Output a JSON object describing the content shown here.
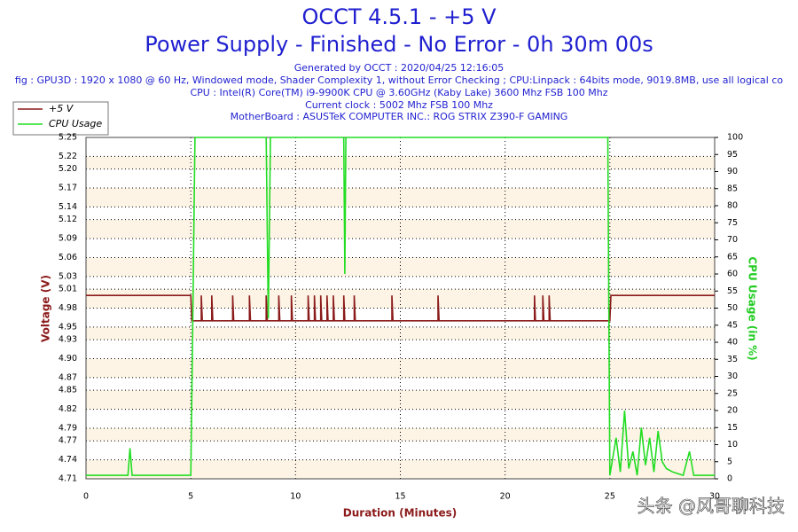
{
  "chart_data": {
    "type": "line",
    "title": "OCCT 4.5.1 - +5 V",
    "title_2": "Power Supply - Finished - No Error - 0h 30m 00s",
    "subtitle": [
      "Generated by OCCT : 2020/04/25 12:16:05",
      "fig : GPU3D : 1920 x 1080 @ 60 Hz, Windowed mode, Shader Complexity 1, without Error Checking ; CPU:Linpack : 64bits mode, 9019.8MB, use all logical co",
      "CPU : Intel(R) Core(TM) i9-9900K CPU @ 3.60GHz (Kaby Lake) 3600 Mhz FSB 100 Mhz",
      "Current clock : 5002 Mhz FSB 100 Mhz",
      "MotherBoard : ASUSTeK COMPUTER INC.: ROG STRIX Z390-F GAMING"
    ],
    "xlabel": "Duration (Minutes)",
    "ylabel": "Voltage (V)",
    "y2label": "CPU Usage (in %)",
    "xlim": [
      0,
      30
    ],
    "xticks": [
      0,
      5,
      10,
      15,
      20,
      25,
      30
    ],
    "ylim": [
      4.71,
      5.25
    ],
    "yticks": [
      {
        "value": 4.71,
        "label": "4.71"
      },
      {
        "value": 4.74,
        "label": "4.74"
      },
      {
        "value": 4.77,
        "label": "4.77"
      },
      {
        "value": 4.79,
        "label": "4.79"
      },
      {
        "value": 4.82,
        "label": "4.82"
      },
      {
        "value": 4.85,
        "label": "4.85"
      },
      {
        "value": 4.87,
        "label": "4.87"
      },
      {
        "value": 4.9,
        "label": "4.90"
      },
      {
        "value": 4.93,
        "label": "4.93"
      },
      {
        "value": 4.95,
        "label": "4.95"
      },
      {
        "value": 4.98,
        "label": "4.98"
      },
      {
        "value": 5.01,
        "label": "5.01"
      },
      {
        "value": 5.03,
        "label": "5.03"
      },
      {
        "value": 5.06,
        "label": "5.06"
      },
      {
        "value": 5.09,
        "label": "5.09"
      },
      {
        "value": 5.12,
        "label": "5.12"
      },
      {
        "value": 5.14,
        "label": "5.14"
      },
      {
        "value": 5.17,
        "label": "5.17"
      },
      {
        "value": 5.2,
        "label": "5.20"
      },
      {
        "value": 5.22,
        "label": "5.22"
      },
      {
        "value": 5.25,
        "label": "5.25"
      }
    ],
    "y2lim": [
      0,
      100
    ],
    "y2ticks": [
      0,
      5,
      10,
      15,
      20,
      25,
      30,
      35,
      40,
      45,
      50,
      55,
      60,
      65,
      70,
      75,
      80,
      85,
      90,
      95,
      100
    ],
    "grid": true,
    "series": [
      {
        "name": "+5 V",
        "color": "#8b1a1a",
        "x": [
          0,
          5,
          5.05,
          5.5,
          5.5,
          5.55,
          6,
          6,
          6.05,
          7,
          7,
          7.05,
          7.8,
          7.8,
          7.85,
          8.6,
          8.6,
          8.65,
          9.2,
          9.2,
          9.25,
          9.8,
          9.8,
          9.85,
          10.6,
          10.6,
          10.65,
          10.9,
          10.9,
          10.95,
          11.2,
          11.2,
          11.25,
          11.5,
          11.5,
          11.55,
          11.8,
          11.8,
          11.85,
          12.3,
          12.3,
          12.35,
          12.8,
          12.8,
          12.85,
          14.6,
          14.6,
          14.65,
          16.8,
          16.8,
          16.85,
          21.4,
          21.4,
          21.45,
          21.8,
          21.8,
          21.85,
          22.1,
          22.1,
          22.15,
          25,
          25.05,
          30
        ],
        "values": [
          5.0,
          5.0,
          4.96,
          4.96,
          5.0,
          4.96,
          4.96,
          5.0,
          4.96,
          4.96,
          5.0,
          4.96,
          4.96,
          5.0,
          4.96,
          4.96,
          5.0,
          4.96,
          4.96,
          5.0,
          4.96,
          4.96,
          5.0,
          4.96,
          4.96,
          5.0,
          4.96,
          4.96,
          5.0,
          4.96,
          4.96,
          5.0,
          4.96,
          4.96,
          5.0,
          4.96,
          4.96,
          5.0,
          4.96,
          4.96,
          5.0,
          4.96,
          4.96,
          5.0,
          4.96,
          4.96,
          5.0,
          4.96,
          4.96,
          5.0,
          4.96,
          4.96,
          5.0,
          4.96,
          4.96,
          5.0,
          4.96,
          4.96,
          5.0,
          4.96,
          4.96,
          5.0,
          5.0
        ]
      },
      {
        "name": "CPU Usage",
        "color": "#22dd22",
        "axis": "y2",
        "x": [
          0,
          2.0,
          2.1,
          2.2,
          2.3,
          5.0,
          5.1,
          5.2,
          8.6,
          8.7,
          8.8,
          12.3,
          12.35,
          12.4,
          24.9,
          25.0,
          25.3,
          25.5,
          25.7,
          25.9,
          26.1,
          26.3,
          26.5,
          26.7,
          26.9,
          27.1,
          27.3,
          27.5,
          27.7,
          28.0,
          28.5,
          28.8,
          29.0,
          29.5,
          30
        ],
        "values": [
          1,
          1,
          9,
          1,
          1,
          1,
          48,
          100,
          100,
          47,
          100,
          100,
          60,
          100,
          100,
          1,
          12,
          2,
          20,
          3,
          8,
          1,
          15,
          4,
          12,
          2,
          14,
          5,
          3,
          2,
          1,
          8,
          1,
          1,
          1
        ]
      }
    ]
  },
  "watermark": "头条 @风哥聊科技"
}
